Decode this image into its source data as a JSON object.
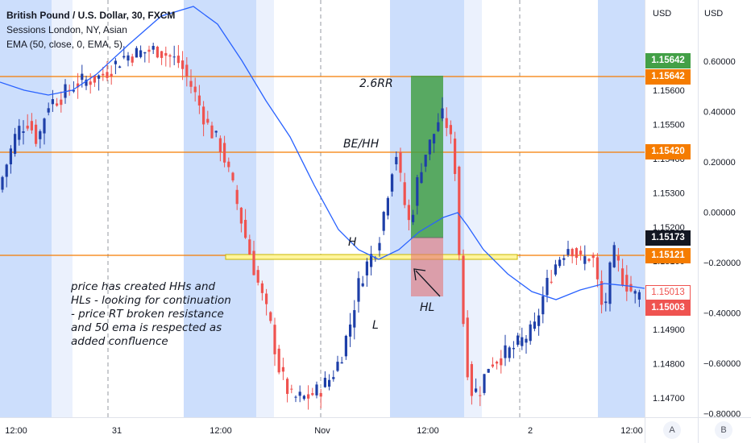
{
  "legend": {
    "symbol": "British Pound / U.S. Dollar, 30, FXCM",
    "sessions": "Sessions London, NY, Asian",
    "ema": "EMA (50, close, 0, EMA, 5)"
  },
  "axes": {
    "left_currency": "USD",
    "right_currency": "USD",
    "price_ticks": [
      {
        "value": 1.156,
        "label": "1.15600"
      },
      {
        "value": 1.155,
        "label": "1.15500"
      },
      {
        "value": 1.154,
        "label": "1.15400"
      },
      {
        "value": 1.153,
        "label": "1.15300"
      },
      {
        "value": 1.152,
        "label": "1.15200"
      },
      {
        "value": 1.151,
        "label": "1.15100"
      },
      {
        "value": 1.15,
        "label": "1.15000"
      },
      {
        "value": 1.149,
        "label": "1.14900"
      },
      {
        "value": 1.148,
        "label": "1.14800"
      },
      {
        "value": 1.147,
        "label": "1.14700"
      }
    ],
    "percent_ticks": [
      {
        "value": 0.6,
        "label": "0.60000"
      },
      {
        "value": 0.4,
        "label": "0.40000"
      },
      {
        "value": 0.2,
        "label": "0.20000"
      },
      {
        "value": 0.0,
        "label": "0.00000"
      },
      {
        "value": -0.2,
        "label": "−0.20000"
      },
      {
        "value": -0.4,
        "label": "−0.40000"
      },
      {
        "value": -0.6,
        "label": "−0.60000"
      },
      {
        "value": -0.8,
        "label": "−0.80000"
      }
    ],
    "time_ticks": [
      "12:00",
      "31",
      "12:00",
      "Nov",
      "12:00",
      "2",
      "12:00"
    ],
    "scale_buttons": [
      "A",
      "B"
    ]
  },
  "price_tags": {
    "target": "1.15642",
    "target_line": "1.15642",
    "be_line": "1.15420",
    "current": "1.15173",
    "support_line": "1.15121",
    "ema_value": "1.15013",
    "last_close": "1.15003"
  },
  "annotations": {
    "rr": "2.6RR",
    "be": "BE/HH",
    "h": "H",
    "l": "L",
    "hl": "HL",
    "note": "price has created HHs and HLs - looking for continuation - price RT broken resistance and 50 ema is respected as added confluence"
  },
  "colors": {
    "up": "#1e3fa8",
    "down": "#ef5350",
    "ema": "#2962ff",
    "orange": "#f57c00",
    "session": "#bbd3fb",
    "support_fill": "#fff59d"
  },
  "chart_data": {
    "type": "candlestick",
    "levels": {
      "target": 1.15642,
      "breakeven": 1.1542,
      "support": 1.15121,
      "stop": 1.15
    },
    "position": {
      "entry": 1.1516,
      "target": 1.15642,
      "stop": 1.15
    }
  }
}
